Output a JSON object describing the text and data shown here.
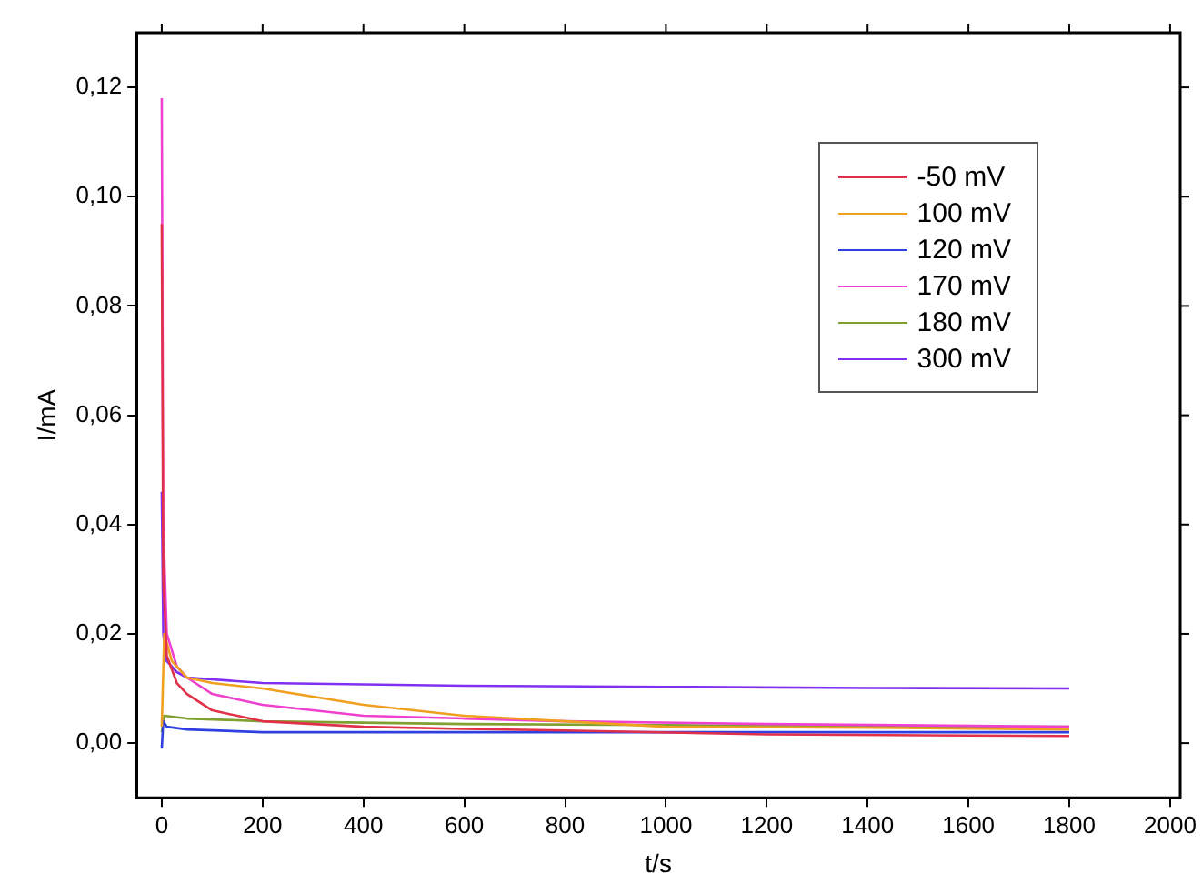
{
  "chart_data": {
    "type": "line",
    "xlabel": "t/s",
    "ylabel": "I/mA",
    "xlim": [
      -50,
      2020
    ],
    "ylim": [
      -0.01,
      0.13
    ],
    "xticks": [
      0,
      200,
      400,
      600,
      800,
      1000,
      1200,
      1400,
      1600,
      1800,
      2000
    ],
    "yticks": [
      {
        "value": 0,
        "label": "0,00"
      },
      {
        "value": 0.02,
        "label": "0,02"
      },
      {
        "value": 0.04,
        "label": "0,04"
      },
      {
        "value": 0.06,
        "label": "0,06"
      },
      {
        "value": 0.08,
        "label": "0,08"
      },
      {
        "value": 0.1,
        "label": "0,10"
      },
      {
        "value": 0.12,
        "label": "0,12"
      }
    ],
    "grid": false,
    "legend": "top right",
    "marker": "none",
    "line_style": "solid",
    "series": [
      {
        "name": "-50 mV",
        "color": "#e0304a",
        "x": [
          0,
          3,
          10,
          30,
          50,
          100,
          200,
          400,
          600,
          800,
          1200,
          1800
        ],
        "values": [
          0.095,
          0.03,
          0.016,
          0.011,
          0.009,
          0.006,
          0.004,
          0.003,
          0.0026,
          0.0023,
          0.0016,
          0.0013
        ]
      },
      {
        "name": "100 mV",
        "color": "#f0a020",
        "x": [
          0,
          5,
          20,
          50,
          100,
          200,
          400,
          600,
          800,
          1000,
          1400,
          1800
        ],
        "values": [
          0.003,
          0.02,
          0.015,
          0.012,
          0.011,
          0.01,
          0.007,
          0.005,
          0.004,
          0.003,
          0.0028,
          0.0025
        ]
      },
      {
        "name": "120 mV",
        "color": "#3040e0",
        "x": [
          0,
          3,
          10,
          50,
          200,
          600,
          1000,
          1400,
          1800
        ],
        "values": [
          -0.001,
          0.004,
          0.003,
          0.0025,
          0.002,
          0.002,
          0.002,
          0.002,
          0.002
        ]
      },
      {
        "name": "170 mV",
        "color": "#f040d0",
        "x": [
          0,
          3,
          10,
          30,
          50,
          100,
          200,
          400,
          600,
          800,
          1200,
          1800
        ],
        "values": [
          0.118,
          0.04,
          0.02,
          0.014,
          0.012,
          0.009,
          0.007,
          0.005,
          0.0045,
          0.004,
          0.0035,
          0.003
        ]
      },
      {
        "name": "180 mV",
        "color": "#80a030",
        "x": [
          0,
          5,
          50,
          200,
          600,
          1000,
          1400,
          1800
        ],
        "values": [
          0.002,
          0.005,
          0.0045,
          0.004,
          0.0035,
          0.0033,
          0.003,
          0.003
        ]
      },
      {
        "name": "300 mV",
        "color": "#8030f0",
        "x": [
          0,
          3,
          10,
          30,
          50,
          200,
          600,
          1000,
          1400,
          1800
        ],
        "values": [
          0.046,
          0.02,
          0.015,
          0.013,
          0.012,
          0.011,
          0.0105,
          0.0103,
          0.0101,
          0.01
        ]
      }
    ]
  }
}
